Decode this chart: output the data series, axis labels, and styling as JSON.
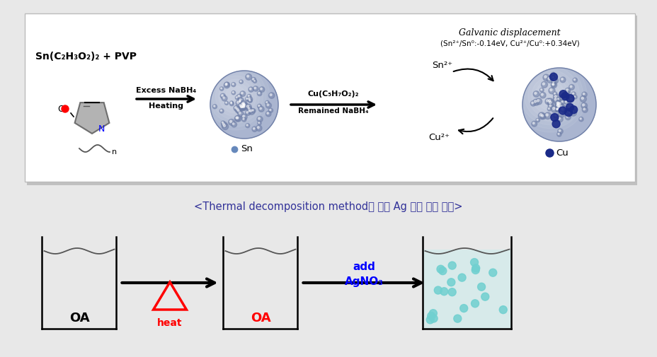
{
  "bg_color": "#e8e8e8",
  "top_box_facecolor": "#ffffff",
  "top_box_edgecolor": "#cccccc",
  "galvanic_line1": "Galvanic displacement",
  "galvanic_line2": "(Sn²⁺/Sn⁰:-0.14eV, Cu²⁺/Cu⁰:+0.34eV)",
  "formula_text": "Sn(C₂H₃O₂)₂ + PVP",
  "arrow1_line1": "Excess NaBH₄",
  "arrow1_line2": "Heating",
  "arrow2_line1": "Cu(C₅H₇O₂)₂",
  "arrow2_line2": "Remained NaBH₄",
  "sn2plus": "Sn²⁺",
  "cu2plus": "Cu²⁺",
  "sn_label": "Sn",
  "cu_label": "Cu",
  "caption_black": "＜Thermal decomposition method",
  "caption_red": "에",
  "caption_black2": " 의한 Ag ",
  "caption_blue": "합성",
  "caption_black3": " 기술 개요＞",
  "oa_black": "OA",
  "oa_red": "OA",
  "heat_label": "heat",
  "add_line1": "add",
  "add_line2": "AgNO₃",
  "dot_color": "#70d0d0",
  "sn_sphere_color": "#aab5d0",
  "sn_sphere_edge": "#7080a8",
  "cu_sphere_color": "#aab5d0",
  "cu_sphere_edge": "#7080a8",
  "cu_dot_color": "#1a2a88"
}
